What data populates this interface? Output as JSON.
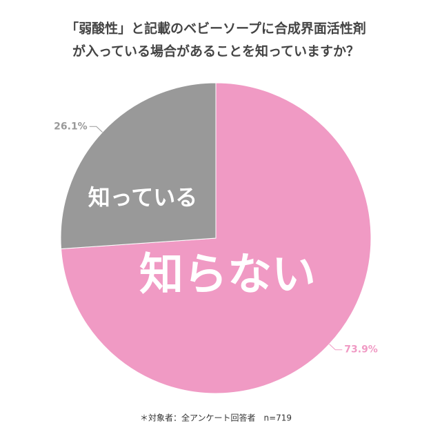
{
  "chart_data": {
    "type": "pie",
    "title": [
      "「弱酸性」と記載のベビーソープに合成界面活性剤",
      "が入っている場合があることを知っていますか？"
    ],
    "categories": [
      "知らない",
      "知っている"
    ],
    "values": [
      73.9,
      26.1
    ],
    "value_labels": [
      "73.9%",
      "26.1%"
    ],
    "colors": [
      "#f09ac4",
      "#999999"
    ],
    "label_colors": [
      "#f09ac4",
      "#999999"
    ],
    "note": "＊対象者：全アンケート回答者　n=719"
  }
}
